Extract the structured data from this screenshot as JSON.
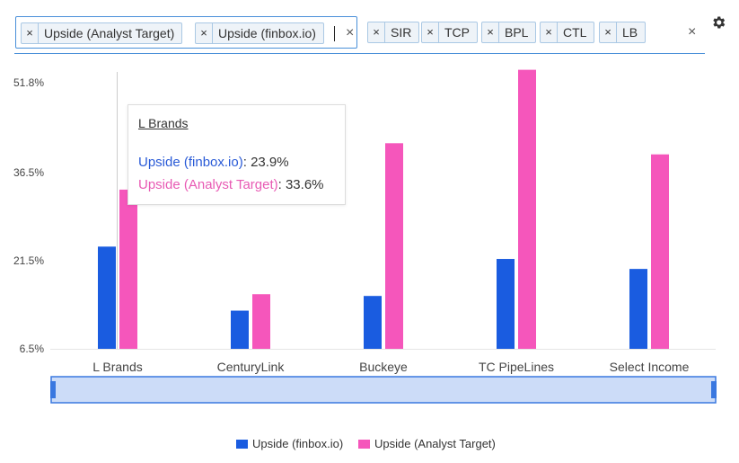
{
  "selector": {
    "metrics": [
      {
        "label": "Upside (Analyst Target)",
        "remove": "×"
      },
      {
        "label": "Upside (finbox.io)",
        "remove": "×"
      }
    ],
    "metrics_clear": "×",
    "tickers": [
      {
        "label": "SIR",
        "remove": "×"
      },
      {
        "label": "TCP",
        "remove": "×"
      },
      {
        "label": "BPL",
        "remove": "×"
      },
      {
        "label": "CTL",
        "remove": "×"
      },
      {
        "label": "LB",
        "remove": "×"
      }
    ],
    "tickers_clear": "×",
    "settings_icon": "gear-icon"
  },
  "tooltip": {
    "title": "L Brands",
    "rows": [
      {
        "series": "Upside (finbox.io)",
        "value": "23.9%",
        "color": "#2a5bd7"
      },
      {
        "series": "Upside (Analyst Target)",
        "value": "33.6%",
        "color": "#e85ab4"
      }
    ]
  },
  "colors": {
    "finbox": "#1a5ce0",
    "analyst": "#f556bb",
    "navigator_fill": "#ccdcf8",
    "navigator_border": "#3a78e0"
  },
  "chart_data": {
    "type": "bar",
    "categories": [
      "L Brands",
      "CenturyLink",
      "Buckeye",
      "TC PipeLines",
      "Select Income"
    ],
    "series": [
      {
        "name": "Upside (finbox.io)",
        "values": [
          23.9,
          13.0,
          15.5,
          21.8,
          20.1
        ]
      },
      {
        "name": "Upside (Analyst Target)",
        "values": [
          33.6,
          15.8,
          41.5,
          54.0,
          39.6
        ]
      }
    ],
    "y_ticks": [
      "6.5%",
      "21.5%",
      "36.5%",
      "51.8%"
    ],
    "y_tick_values": [
      6.5,
      21.5,
      36.5,
      51.8
    ],
    "ylim": [
      6.5,
      51.8
    ],
    "xlabel": "",
    "ylabel": "",
    "grid": false,
    "legend_position": "bottom-center"
  }
}
